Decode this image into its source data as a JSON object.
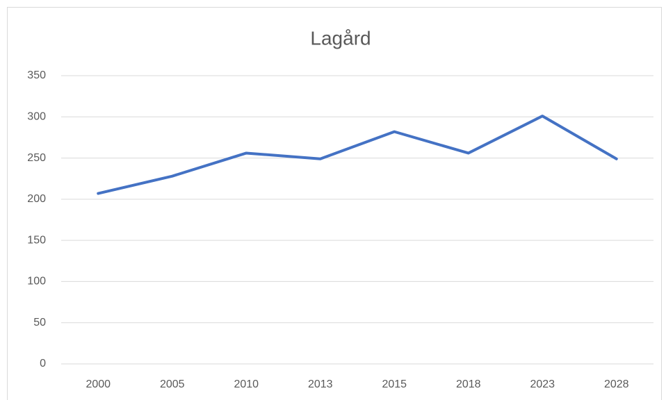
{
  "chart_data": {
    "type": "line",
    "title": "Lagård",
    "categories": [
      "2000",
      "2005",
      "2010",
      "2013",
      "2015",
      "2018",
      "2023",
      "2028"
    ],
    "values": [
      207,
      228,
      256,
      249,
      282,
      256,
      301,
      249
    ],
    "color": "#4472c4",
    "ylim": [
      0,
      350
    ],
    "yticks": [
      0,
      50,
      100,
      150,
      200,
      250,
      300,
      350
    ],
    "grid": true
  }
}
